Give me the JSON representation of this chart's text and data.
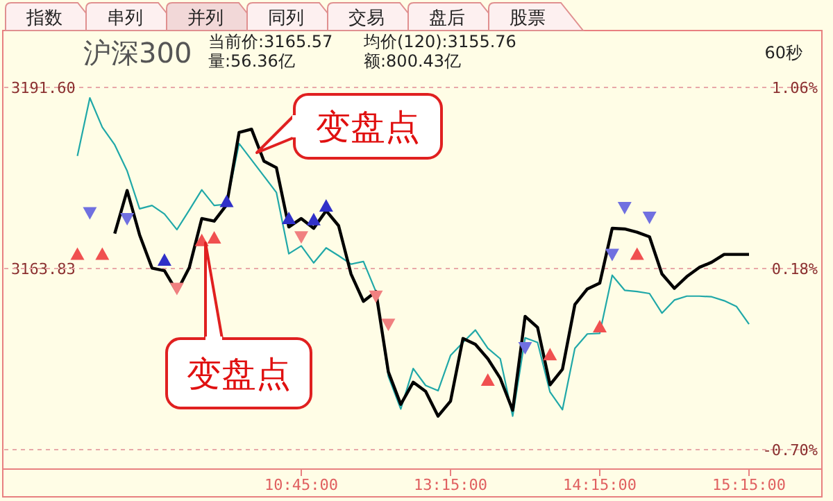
{
  "chart_data": {
    "type": "line",
    "title": "沪深300",
    "annotations": [
      "指数",
      "串列",
      "并列",
      "同列",
      "交易",
      "盘后",
      "股票",
      "当前价:3165.57",
      "量:56.36亿",
      "均价(120):3155.76",
      "额:800.43亿",
      "60秒",
      "变盘点",
      "变盘点"
    ],
    "categories": [
      null,
      null,
      null,
      null,
      null,
      null,
      null,
      null,
      null,
      null,
      null,
      null,
      null,
      null,
      null,
      null,
      null,
      null,
      "10:45:00",
      null,
      null,
      null,
      null,
      null,
      null,
      null,
      null,
      null,
      null,
      null,
      "13:15:00",
      null,
      null,
      null,
      null,
      null,
      null,
      null,
      null,
      null,
      null,
      null,
      "14:15:00",
      null,
      null,
      null,
      null,
      null,
      null,
      null,
      null,
      null,
      null,
      null,
      "15:15:00"
    ],
    "ylim": [
      3136.06,
      3191.6
    ],
    "yticks": [
      {
        "value": 3191.6,
        "label": "3191.60"
      },
      3163.83,
      {
        "value": 3136.06,
        "label": null
      }
    ],
    "y2lim": [
      -0.7,
      1.06
    ],
    "y2ticks": [
      {
        "value": 1.06,
        "label": "1.06%"
      },
      {
        "value": 0.18,
        "label": "0.18%"
      },
      {
        "value": -0.7,
        "label": "-0.70%"
      }
    ],
    "grid": "y",
    "ref_lines": [
      {
        "axis": "y",
        "value": 3163.83,
        "color": "#e8a8a8",
        "line_style": "dashed"
      }
    ],
    "series": [
      {
        "color": "#20a8a8",
        "values": [
          3181.1,
          3190.0,
          3185.5,
          3182.8,
          3178.8,
          3173.0,
          3173.5,
          3172.2,
          3169.8,
          3172.8,
          3175.9,
          3173.5,
          3173.7,
          3183.0,
          3180.5,
          3178.0,
          3175.5,
          3166.1,
          3167.3,
          3164.7,
          3167.0,
          3165.8,
          3164.5,
          3164.9,
          3160.3,
          3147.3,
          3142.3,
          3148.5,
          3145.9,
          3145.1,
          3150.5,
          3152.5,
          3154.4,
          3151.6,
          3150.0,
          3141.2,
          3153.2,
          3152.5,
          3144.9,
          3142.2,
          3151.6,
          3153.8,
          3153.9,
          3162.8,
          3160.5,
          3160.3,
          3160.0,
          3157.0,
          3159.0,
          3159.6,
          3159.6,
          3159.5,
          3158.9,
          3158.0,
          3155.3
        ]
      },
      {
        "color": "#000000",
        "values": [
          null,
          null,
          null,
          3169.2,
          3175.8,
          3169.0,
          3163.9,
          3163.5,
          3160.3,
          3164.0,
          3171.5,
          3171.1,
          3173.6,
          3184.7,
          3185.2,
          3180.3,
          3179.3,
          3170.2,
          3171.5,
          3170.0,
          3172.7,
          3170.4,
          3163.0,
          3158.8,
          3160.3,
          3148.0,
          3143.0,
          3146.4,
          3145.0,
          3141.2,
          3143.5,
          3153.1,
          3152.2,
          3150.0,
          3147.0,
          3142.1,
          3156.5,
          3154.8,
          3146.0,
          3148.4,
          3158.3,
          3160.7,
          3161.6,
          3170.0,
          3169.9,
          3169.4,
          3168.7,
          3163.0,
          3160.8,
          3162.6,
          3164.0,
          3164.8,
          3166.0,
          3166.0,
          3166.0
        ]
      },
      {
        "type": "scatter",
        "marker": "triangle",
        "color": "#f05050",
        "values": [
          3166.0,
          null,
          3166.0,
          null,
          null,
          null,
          null,
          null,
          null,
          null,
          3168.1,
          3168.5,
          null,
          null,
          null,
          null,
          null,
          null,
          null,
          null,
          null,
          null,
          null,
          null,
          null,
          null,
          null,
          null,
          null,
          null,
          null,
          null,
          null,
          3146.7,
          null,
          null,
          null,
          null,
          3150.6,
          null,
          null,
          null,
          3154.9,
          null,
          null,
          3166.0,
          null,
          null,
          null,
          null,
          null,
          null,
          null,
          null,
          null
        ]
      },
      {
        "type": "scatter",
        "marker": "triangle_down",
        "color": "#f08080",
        "values": [
          null,
          null,
          null,
          null,
          null,
          null,
          null,
          null,
          3160.8,
          null,
          null,
          null,
          null,
          null,
          null,
          null,
          null,
          null,
          3168.7,
          null,
          null,
          null,
          null,
          null,
          3159.6,
          3155.3,
          null,
          null,
          null,
          null,
          null,
          null,
          null,
          null,
          null,
          null,
          null,
          null,
          null,
          null,
          null,
          null,
          null,
          null,
          null,
          null,
          null,
          null,
          null,
          null,
          null,
          null,
          null,
          null,
          null
        ]
      },
      {
        "type": "scatter",
        "marker": "triangle_down",
        "color": "#7070e0",
        "values": [
          null,
          3172.4,
          null,
          null,
          3171.5,
          null,
          null,
          null,
          null,
          null,
          null,
          null,
          null,
          null,
          null,
          null,
          null,
          null,
          null,
          null,
          null,
          null,
          null,
          null,
          null,
          null,
          null,
          null,
          null,
          null,
          null,
          null,
          null,
          null,
          null,
          null,
          3151.7,
          null,
          null,
          null,
          null,
          null,
          null,
          3166.0,
          3173.2,
          null,
          3171.7,
          null,
          null,
          null,
          null,
          null,
          null,
          null,
          null
        ]
      },
      {
        "type": "scatter",
        "marker": "triangle",
        "color": "#3030c8",
        "values": [
          null,
          null,
          null,
          null,
          null,
          null,
          null,
          3165.1,
          null,
          null,
          null,
          null,
          3174.1,
          null,
          null,
          null,
          null,
          3171.5,
          null,
          3171.3,
          3173.4,
          null,
          null,
          null,
          null,
          null,
          null,
          null,
          null,
          null,
          null,
          null,
          null,
          null,
          null,
          null,
          null,
          null,
          null,
          null,
          null,
          null,
          null,
          null,
          null,
          null,
          null,
          null,
          null,
          null,
          null,
          null,
          null,
          null,
          null
        ]
      }
    ]
  }
}
